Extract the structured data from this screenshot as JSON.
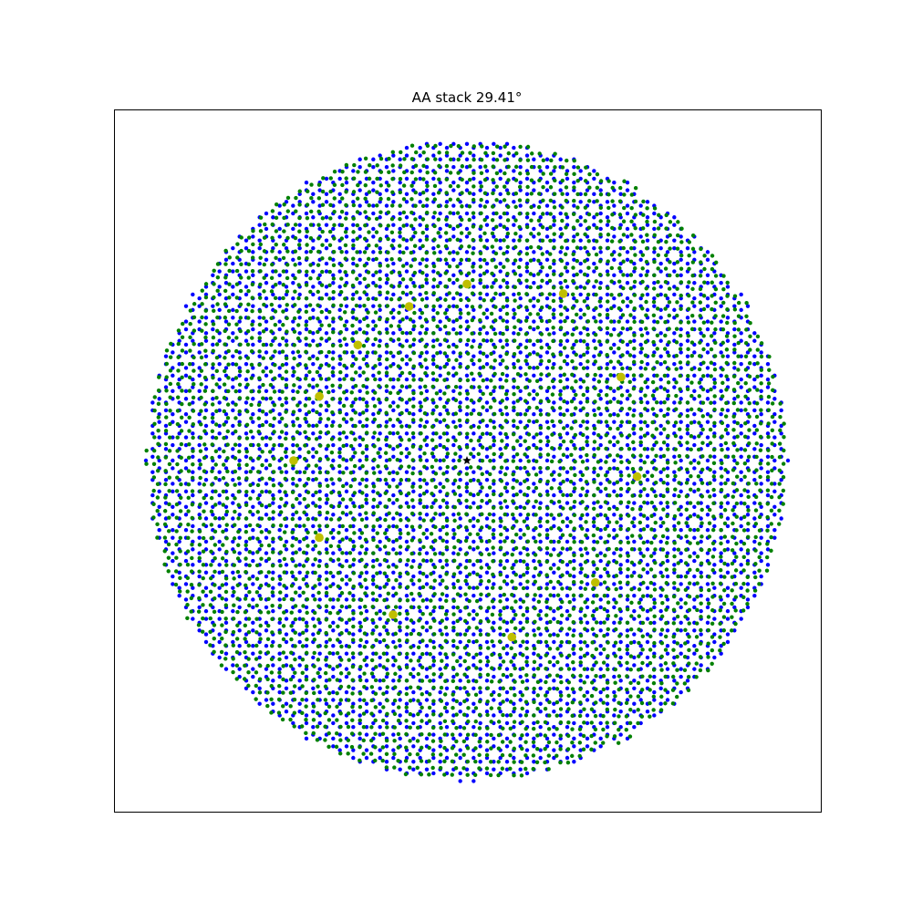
{
  "chart_data": {
    "type": "scatter",
    "title": "AA stack 29.41°",
    "xlabel": "",
    "ylabel": "",
    "grid": false,
    "legend": "none",
    "axes_ticks": false,
    "twist_angle_deg": 29.41,
    "lattice_constant": 1,
    "max_radius": 24,
    "series": [
      {
        "layer": "bottom",
        "color": "#0000ff",
        "rotation_deg": 0
      },
      {
        "layer": "top",
        "color": "#008000",
        "rotation_deg": 29.41
      }
    ],
    "coincidence_points": {
      "color": "#bfbf00",
      "values": [
        [
          0,
          0.55
        ],
        [
          -0.18,
          0.48
        ],
        [
          -0.34,
          0.36
        ],
        [
          -0.46,
          0.2
        ],
        [
          0.3,
          0.52
        ],
        [
          0.48,
          0.26
        ],
        [
          0.53,
          -0.05
        ],
        [
          0.4,
          -0.38
        ],
        [
          0.14,
          -0.55
        ],
        [
          -0.23,
          -0.48
        ],
        [
          -0.46,
          -0.24
        ],
        [
          -0.54,
          0.0
        ]
      ]
    },
    "origin_marker": {
      "symbol": "star",
      "color": "#000000",
      "x": 0,
      "y": 0
    }
  }
}
